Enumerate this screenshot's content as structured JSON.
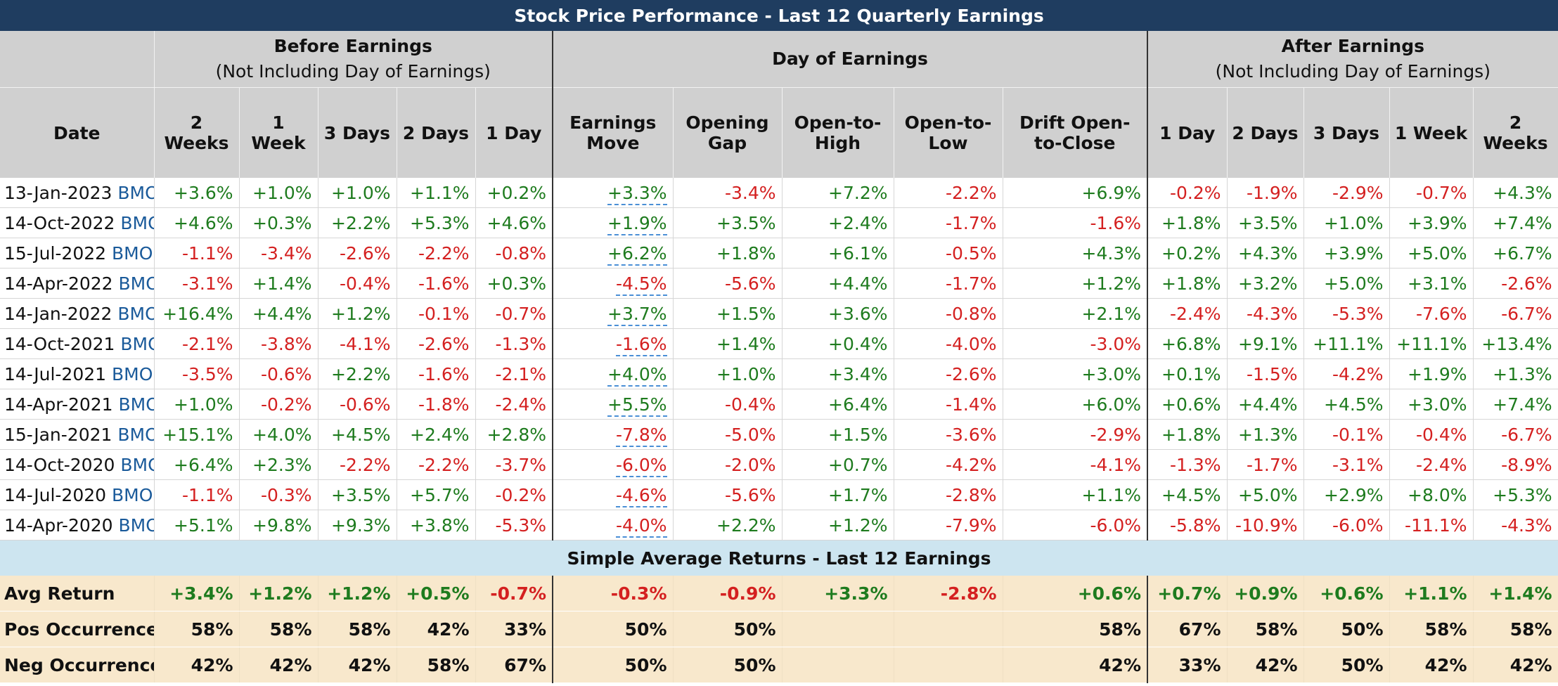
{
  "title": "Stock Price Performance - Last 12 Quarterly Earnings",
  "groups": {
    "before": {
      "title": "Before Earnings",
      "sub": "(Not Including Day of Earnings)"
    },
    "day": {
      "title": "Day of Earnings"
    },
    "after": {
      "title": "After Earnings",
      "sub": "(Not Including Day of Earnings)"
    }
  },
  "columns": [
    "Date",
    "2 Weeks",
    "1 Week",
    "3 Days",
    "2 Days",
    "1 Day",
    "Earnings Move",
    "Opening Gap",
    "Open-to-High",
    "Open-to-Low",
    "Drift Open-to-Close",
    "1 Day",
    "2 Days",
    "3 Days",
    "1 Week",
    "2 Weeks"
  ],
  "rows": [
    {
      "date": "13-Jan-2023",
      "tag": "BMO",
      "values": [
        "+3.6%",
        "+1.0%",
        "+1.0%",
        "+1.1%",
        "+0.2%",
        "+3.3%",
        "-3.4%",
        "+7.2%",
        "-2.2%",
        "+6.9%",
        "-0.2%",
        "-1.9%",
        "-2.9%",
        "-0.7%",
        "+4.3%"
      ]
    },
    {
      "date": "14-Oct-2022",
      "tag": "BMO",
      "values": [
        "+4.6%",
        "+0.3%",
        "+2.2%",
        "+5.3%",
        "+4.6%",
        "+1.9%",
        "+3.5%",
        "+2.4%",
        "-1.7%",
        "-1.6%",
        "+1.8%",
        "+3.5%",
        "+1.0%",
        "+3.9%",
        "+7.4%"
      ]
    },
    {
      "date": "15-Jul-2022",
      "tag": "BMO",
      "values": [
        "-1.1%",
        "-3.4%",
        "-2.6%",
        "-2.2%",
        "-0.8%",
        "+6.2%",
        "+1.8%",
        "+6.1%",
        "-0.5%",
        "+4.3%",
        "+0.2%",
        "+4.3%",
        "+3.9%",
        "+5.0%",
        "+6.7%"
      ]
    },
    {
      "date": "14-Apr-2022",
      "tag": "BMO",
      "values": [
        "-3.1%",
        "+1.4%",
        "-0.4%",
        "-1.6%",
        "+0.3%",
        "-4.5%",
        "-5.6%",
        "+4.4%",
        "-1.7%",
        "+1.2%",
        "+1.8%",
        "+3.2%",
        "+5.0%",
        "+3.1%",
        "-2.6%"
      ]
    },
    {
      "date": "14-Jan-2022",
      "tag": "BMO",
      "values": [
        "+16.4%",
        "+4.4%",
        "+1.2%",
        "-0.1%",
        "-0.7%",
        "+3.7%",
        "+1.5%",
        "+3.6%",
        "-0.8%",
        "+2.1%",
        "-2.4%",
        "-4.3%",
        "-5.3%",
        "-7.6%",
        "-6.7%"
      ]
    },
    {
      "date": "14-Oct-2021",
      "tag": "BMO",
      "values": [
        "-2.1%",
        "-3.8%",
        "-4.1%",
        "-2.6%",
        "-1.3%",
        "-1.6%",
        "+1.4%",
        "+0.4%",
        "-4.0%",
        "-3.0%",
        "+6.8%",
        "+9.1%",
        "+11.1%",
        "+11.1%",
        "+13.4%"
      ]
    },
    {
      "date": "14-Jul-2021",
      "tag": "BMO",
      "values": [
        "-3.5%",
        "-0.6%",
        "+2.2%",
        "-1.6%",
        "-2.1%",
        "+4.0%",
        "+1.0%",
        "+3.4%",
        "-2.6%",
        "+3.0%",
        "+0.1%",
        "-1.5%",
        "-4.2%",
        "+1.9%",
        "+1.3%"
      ]
    },
    {
      "date": "14-Apr-2021",
      "tag": "BMO",
      "values": [
        "+1.0%",
        "-0.2%",
        "-0.6%",
        "-1.8%",
        "-2.4%",
        "+5.5%",
        "-0.4%",
        "+6.4%",
        "-1.4%",
        "+6.0%",
        "+0.6%",
        "+4.4%",
        "+4.5%",
        "+3.0%",
        "+7.4%"
      ]
    },
    {
      "date": "15-Jan-2021",
      "tag": "BMO",
      "values": [
        "+15.1%",
        "+4.0%",
        "+4.5%",
        "+2.4%",
        "+2.8%",
        "-7.8%",
        "-5.0%",
        "+1.5%",
        "-3.6%",
        "-2.9%",
        "+1.8%",
        "+1.3%",
        "-0.1%",
        "-0.4%",
        "-6.7%"
      ]
    },
    {
      "date": "14-Oct-2020",
      "tag": "BMO",
      "values": [
        "+6.4%",
        "+2.3%",
        "-2.2%",
        "-2.2%",
        "-3.7%",
        "-6.0%",
        "-2.0%",
        "+0.7%",
        "-4.2%",
        "-4.1%",
        "-1.3%",
        "-1.7%",
        "-3.1%",
        "-2.4%",
        "-8.9%"
      ]
    },
    {
      "date": "14-Jul-2020",
      "tag": "BMO",
      "values": [
        "-1.1%",
        "-0.3%",
        "+3.5%",
        "+5.7%",
        "-0.2%",
        "-4.6%",
        "-5.6%",
        "+1.7%",
        "-2.8%",
        "+1.1%",
        "+4.5%",
        "+5.0%",
        "+2.9%",
        "+8.0%",
        "+5.3%"
      ]
    },
    {
      "date": "14-Apr-2020",
      "tag": "BMO",
      "values": [
        "+5.1%",
        "+9.8%",
        "+9.3%",
        "+3.8%",
        "-5.3%",
        "-4.0%",
        "+2.2%",
        "+1.2%",
        "-7.9%",
        "-6.0%",
        "-5.8%",
        "-10.9%",
        "-6.0%",
        "-11.1%",
        "-4.3%"
      ]
    }
  ],
  "summary": {
    "title": "Simple Average Returns - Last 12 Earnings",
    "rows": [
      {
        "label": "Avg Return",
        "values": [
          "+3.4%",
          "+1.2%",
          "+1.2%",
          "+0.5%",
          "-0.7%",
          "-0.3%",
          "-0.9%",
          "+3.3%",
          "-2.8%",
          "+0.6%",
          "+0.7%",
          "+0.9%",
          "+0.6%",
          "+1.1%",
          "+1.4%"
        ]
      },
      {
        "label": "Pos Occurrences",
        "values": [
          "58%",
          "58%",
          "58%",
          "42%",
          "33%",
          "50%",
          "50%",
          "",
          "",
          "58%",
          "67%",
          "58%",
          "50%",
          "58%",
          "58%"
        ]
      },
      {
        "label": "Neg Occurrences",
        "values": [
          "42%",
          "42%",
          "42%",
          "58%",
          "67%",
          "50%",
          "50%",
          "",
          "",
          "42%",
          "33%",
          "42%",
          "50%",
          "42%",
          "42%"
        ]
      }
    ]
  }
}
